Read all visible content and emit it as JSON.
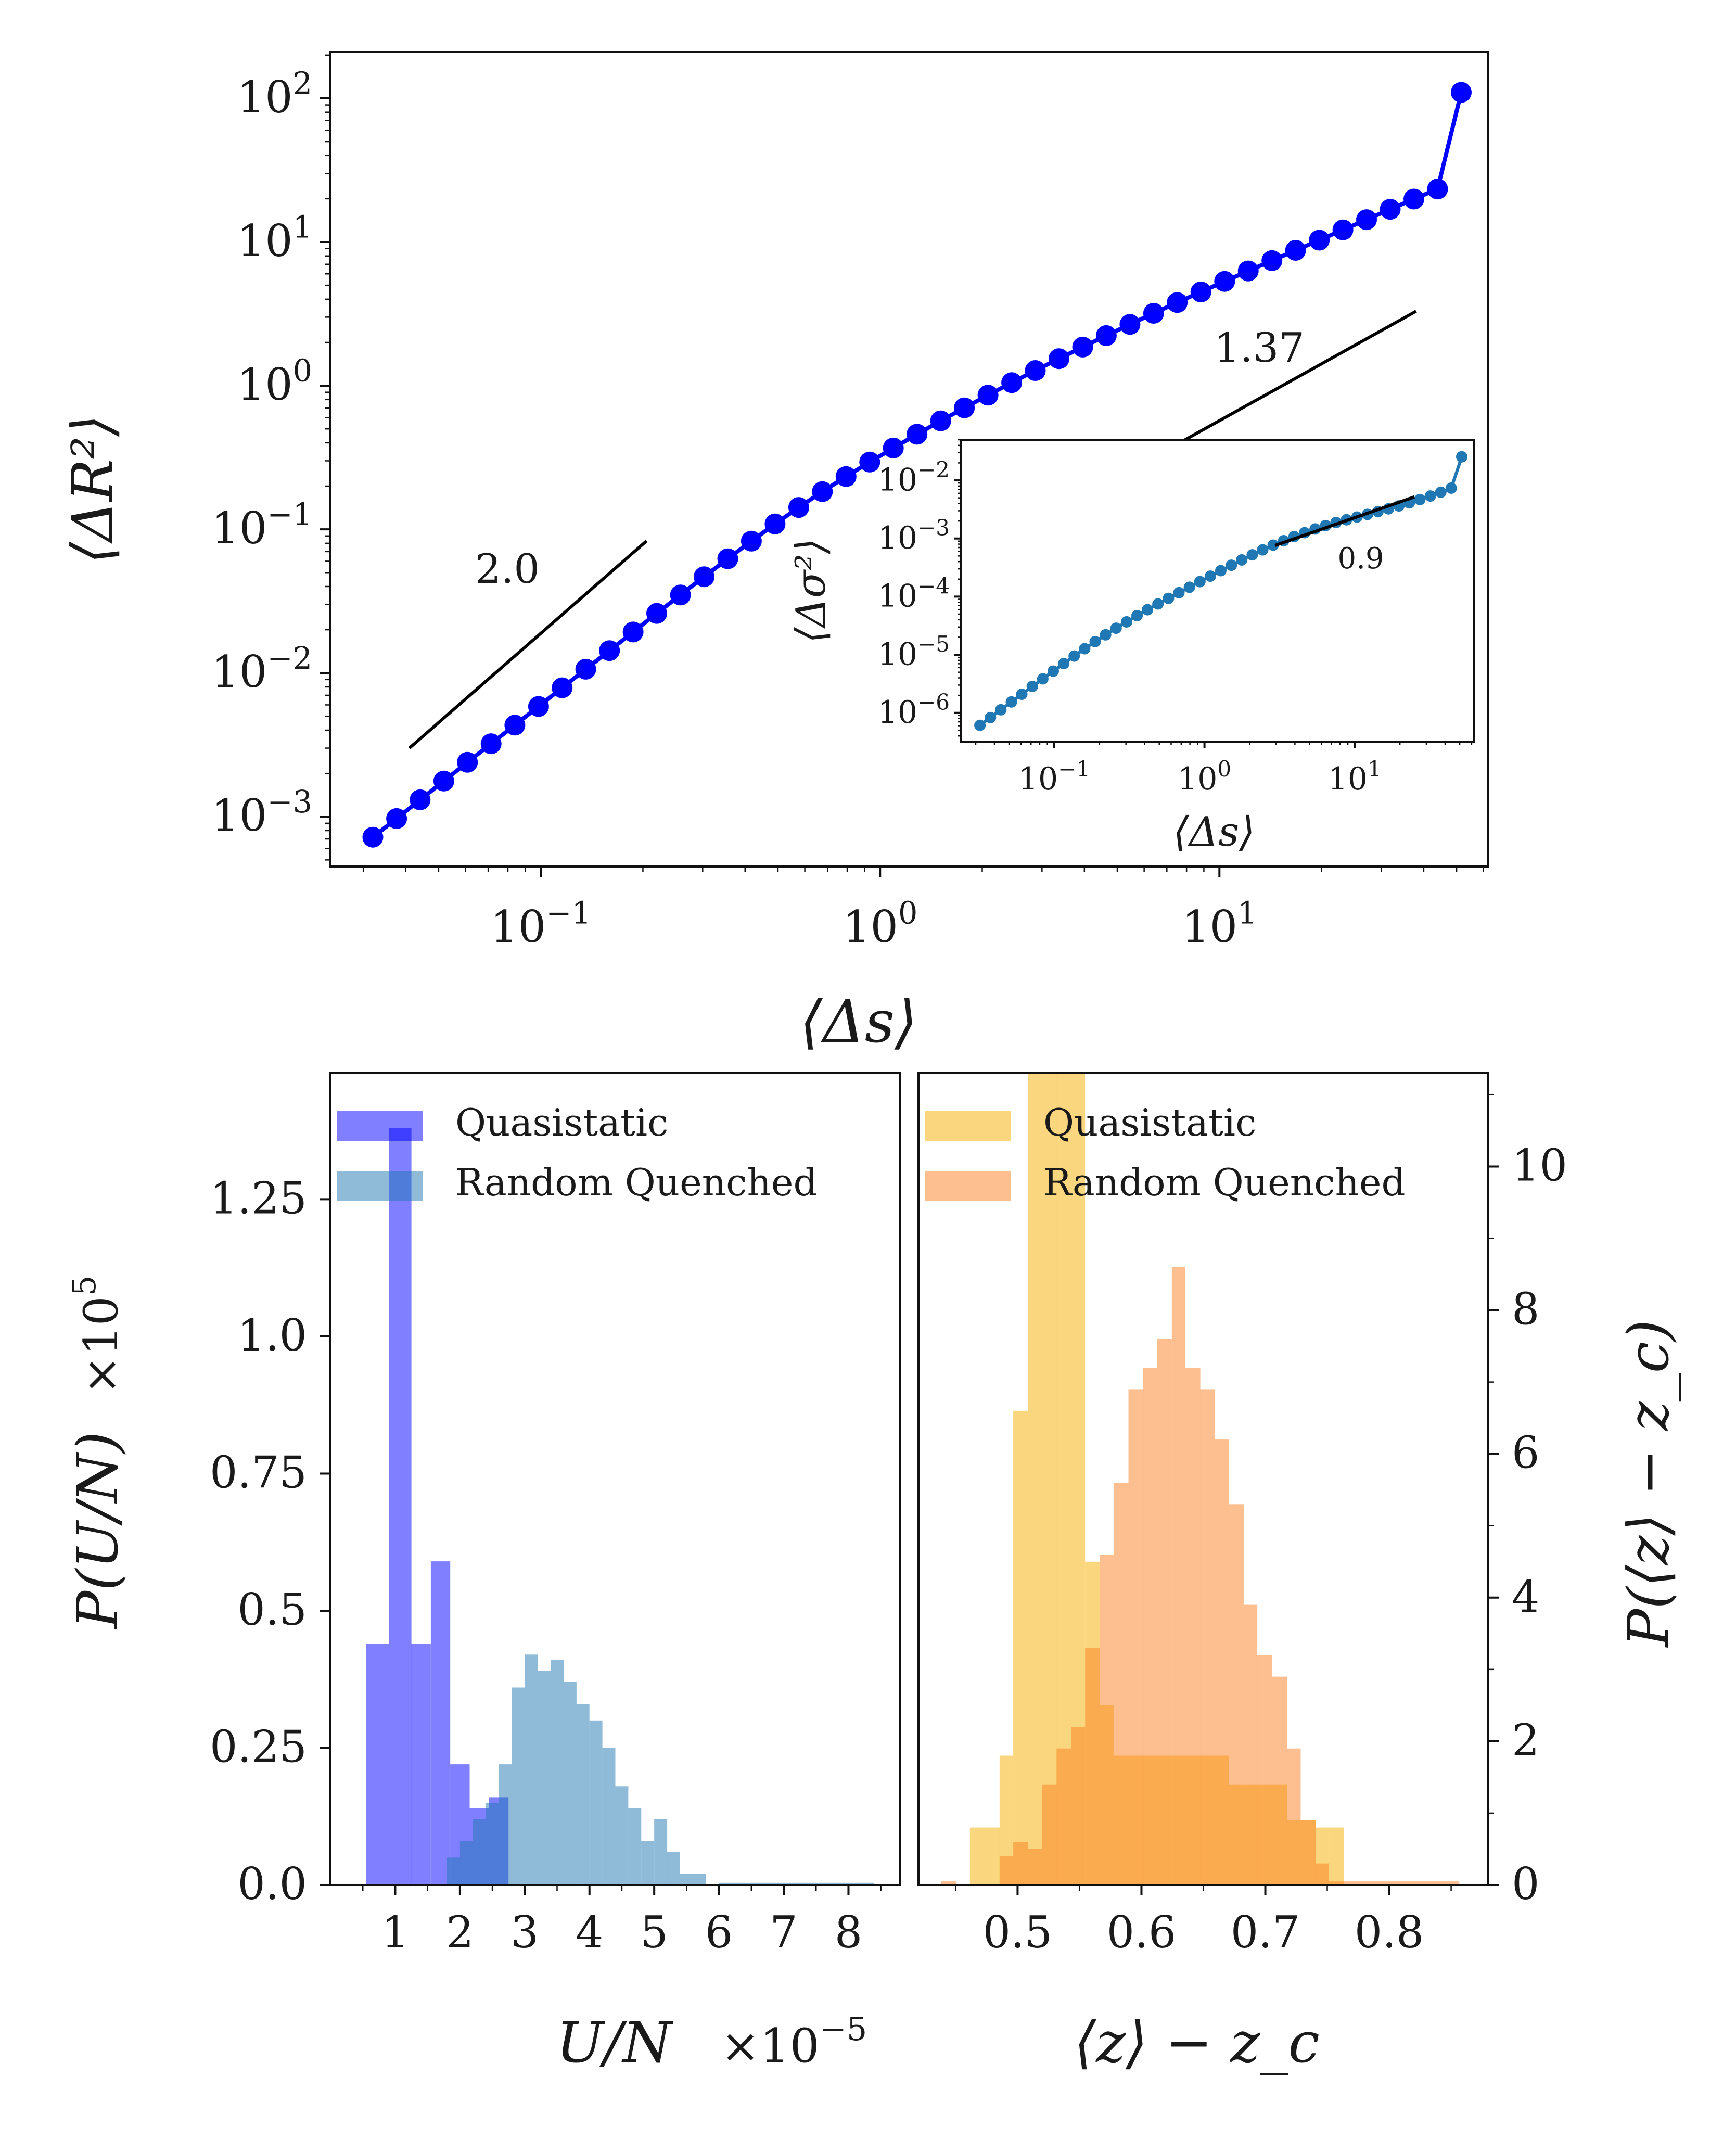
{
  "colors": {
    "main_series": "#0000ff",
    "inset_series": "#1f77b4",
    "hist_quasistatic_left": "#0000ff",
    "hist_random_left": "#1f77b4",
    "hist_quasistatic_right": "#f5b000",
    "hist_random_right": "#fb8020"
  },
  "chart_data": [
    {
      "id": "msd",
      "type": "line",
      "xscale": "log",
      "yscale": "log",
      "xlabel": "⟨Δs⟩",
      "ylabel": "⟨ΔR²⟩",
      "xlim": [
        0.024,
        62
      ],
      "ylim": [
        0.00045,
        210
      ],
      "x_ticks": [
        {
          "value": 0.1,
          "mantissa": "10",
          "exp": "−1"
        },
        {
          "value": 1,
          "mantissa": "10",
          "exp": "0"
        },
        {
          "value": 10,
          "mantissa": "10",
          "exp": "1"
        }
      ],
      "y_ticks": [
        {
          "value": 0.001,
          "mantissa": "10",
          "exp": "−3"
        },
        {
          "value": 0.01,
          "mantissa": "10",
          "exp": "−2"
        },
        {
          "value": 0.1,
          "mantissa": "10",
          "exp": "−1"
        },
        {
          "value": 1,
          "mantissa": "10",
          "exp": "0"
        },
        {
          "value": 10,
          "mantissa": "10",
          "exp": "1"
        },
        {
          "value": 100,
          "mantissa": "10",
          "exp": "2"
        }
      ],
      "series": [
        {
          "name": "MSD",
          "x": [
            0.032,
            0.0376,
            0.0441,
            0.0518,
            0.0608,
            0.0714,
            0.0839,
            0.0985,
            0.1156,
            0.1357,
            0.1594,
            0.1871,
            0.2197,
            0.258,
            0.3029,
            0.3557,
            0.4176,
            0.4903,
            0.5757,
            0.676,
            0.7937,
            0.932,
            1.094,
            1.285,
            1.509,
            1.771,
            2.08,
            2.442,
            2.867,
            3.367,
            3.953,
            4.641,
            5.45,
            6.4,
            7.51,
            8.82,
            10.36,
            12.16,
            14.28,
            16.77,
            19.69,
            23.12,
            27.14,
            31.87,
            37.42,
            43.94,
            51.6
          ],
          "y": [
            0.00072,
            0.00097,
            0.00131,
            0.00177,
            0.00239,
            0.00322,
            0.00434,
            0.00585,
            0.00789,
            0.01063,
            0.01432,
            0.0193,
            0.026,
            0.0349,
            0.0468,
            0.0624,
            0.0828,
            0.109,
            0.142,
            0.183,
            0.233,
            0.294,
            0.368,
            0.459,
            0.569,
            0.701,
            0.859,
            1.049,
            1.274,
            1.541,
            1.857,
            2.23,
            2.67,
            3.19,
            3.79,
            4.49,
            5.32,
            6.29,
            7.42,
            8.75,
            10.3,
            12.15,
            14.3,
            16.9,
            19.9,
            23.4,
            110
          ]
        }
      ],
      "annotations": [
        {
          "label": "2.0",
          "slope": 2.0,
          "x": [
            0.041,
            0.205
          ],
          "y": [
            0.003,
            0.083
          ]
        },
        {
          "label": "1.37",
          "slope": 1.37,
          "x": [
            3.15,
            38.0
          ],
          "y": [
            0.125,
            3.3
          ]
        }
      ]
    },
    {
      "id": "stress",
      "type": "line",
      "xscale": "log",
      "yscale": "log",
      "xlabel": "⟨Δs⟩",
      "ylabel": "⟨Δσ²⟩",
      "xlim": [
        0.024,
        62
      ],
      "ylim": [
        3.2e-07,
        0.05
      ],
      "x_ticks": [
        {
          "value": 0.1,
          "mantissa": "10",
          "exp": "−1"
        },
        {
          "value": 1,
          "mantissa": "10",
          "exp": "0"
        },
        {
          "value": 10,
          "mantissa": "10",
          "exp": "1"
        }
      ],
      "y_ticks": [
        {
          "value": 1e-06,
          "mantissa": "10",
          "exp": "−6"
        },
        {
          "value": 1e-05,
          "mantissa": "10",
          "exp": "−5"
        },
        {
          "value": 0.0001,
          "mantissa": "10",
          "exp": "−4"
        },
        {
          "value": 0.001,
          "mantissa": "10",
          "exp": "−3"
        },
        {
          "value": 0.01,
          "mantissa": "10",
          "exp": "−2"
        }
      ],
      "series": [
        {
          "name": "Δσ²",
          "x": [
            0.032,
            0.0376,
            0.0441,
            0.0518,
            0.0608,
            0.0714,
            0.0839,
            0.0985,
            0.1156,
            0.1357,
            0.1594,
            0.1871,
            0.2197,
            0.258,
            0.3029,
            0.3557,
            0.4176,
            0.4903,
            0.5757,
            0.676,
            0.7937,
            0.932,
            1.094,
            1.285,
            1.509,
            1.771,
            2.08,
            2.442,
            2.867,
            3.367,
            3.953,
            4.641,
            5.45,
            6.4,
            7.51,
            8.82,
            10.36,
            12.16,
            14.28,
            16.77,
            19.69,
            23.12,
            27.14,
            31.87,
            37.42,
            43.94,
            51.6
          ],
          "y": [
            6.1e-07,
            8.3e-07,
            1.13e-06,
            1.54e-06,
            2.09e-06,
            2.84e-06,
            3.85e-06,
            5.22e-06,
            7.06e-06,
            9.5e-06,
            1.27e-05,
            1.68e-05,
            2.2e-05,
            2.86e-05,
            3.68e-05,
            4.7e-05,
            5.95e-05,
            7.48e-05,
            9.35e-05,
            0.000117,
            0.000145,
            0.000181,
            0.000225,
            0.00028,
            0.000347,
            0.000428,
            0.000524,
            0.000637,
            0.000768,
            0.000916,
            0.00108,
            0.00126,
            0.00146,
            0.00167,
            0.00188,
            0.0021,
            0.00234,
            0.0026,
            0.0029,
            0.00324,
            0.00364,
            0.00411,
            0.00468,
            0.00538,
            0.00625,
            0.00735,
            0.0255
          ]
        }
      ],
      "annotations": [
        {
          "label": "0.9",
          "slope": 0.9,
          "x": [
            2.95,
            25.0
          ],
          "y": [
            0.00076,
            0.0052
          ]
        }
      ]
    },
    {
      "id": "hist_energy",
      "type": "bar",
      "xlabel": "U/N",
      "xlabel_multiplier": {
        "mantissa": "×10",
        "exp": "−5"
      },
      "ylabel": "P(U/N)",
      "ylabel_multiplier": {
        "mantissa": "×10",
        "exp": "5"
      },
      "xlim": [
        0.0,
        8.8
      ],
      "ylim": [
        0.0,
        1.48
      ],
      "x_ticks": [
        1,
        2,
        3,
        4,
        5,
        6,
        7,
        8
      ],
      "y_ticks": [
        {
          "value": 0.0,
          "label": "0.0"
        },
        {
          "value": 0.25,
          "label": "0.25"
        },
        {
          "value": 0.5,
          "label": "0.5"
        },
        {
          "value": 0.75,
          "label": "0.75"
        },
        {
          "value": 1.0,
          "label": "1.0"
        },
        {
          "value": 1.25,
          "label": "1.25"
        }
      ],
      "series": [
        {
          "name": "Quasistatic",
          "bin_edges": [
            0.55,
            0.9,
            1.25,
            1.55,
            1.85,
            2.15,
            2.45,
            2.75
          ],
          "values": [
            0.44,
            1.38,
            0.44,
            0.59,
            0.22,
            0.14,
            0.16
          ]
        },
        {
          "name": "Random Quenched",
          "bin_edges": [
            1.6,
            1.8,
            2.0,
            2.2,
            2.4,
            2.6,
            2.8,
            3.0,
            3.2,
            3.4,
            3.6,
            3.8,
            4.0,
            4.2,
            4.4,
            4.6,
            4.8,
            5.0,
            5.2,
            5.4,
            5.6,
            5.8,
            6.0,
            6.2,
            6.4,
            6.6,
            6.8,
            7.0,
            7.2,
            7.4,
            7.6,
            7.8,
            8.0,
            8.2,
            8.4
          ],
          "values": [
            0.0,
            0.05,
            0.08,
            0.12,
            0.15,
            0.22,
            0.36,
            0.42,
            0.39,
            0.41,
            0.37,
            0.33,
            0.3,
            0.25,
            0.18,
            0.14,
            0.08,
            0.12,
            0.06,
            0.02,
            0.02,
            0.0,
            0.004,
            0.004,
            0.004,
            0.004,
            0.004,
            0.004,
            0.004,
            0.004,
            0.004,
            0.004,
            0.004,
            0.004
          ]
        }
      ],
      "legend": [
        "Quasistatic",
        "Random Quenched"
      ],
      "legend_position": "top-right"
    },
    {
      "id": "hist_contacts",
      "type": "bar",
      "xlabel": "⟨z⟩ − z_c",
      "ylabel": "P(⟨z⟩ − z_c)",
      "xlim": [
        0.42,
        0.88
      ],
      "ylim": [
        0.0,
        11.3
      ],
      "x_ticks": [
        {
          "value": 0.5,
          "label": "0.5"
        },
        {
          "value": 0.6,
          "label": "0.6"
        },
        {
          "value": 0.7,
          "label": "0.7"
        },
        {
          "value": 0.8,
          "label": "0.8"
        }
      ],
      "y_ticks": [
        0,
        2,
        4,
        6,
        8,
        10
      ],
      "series": [
        {
          "name": "Quasistatic",
          "bin_edges": [
            0.4385,
            0.4505,
            0.4615,
            0.4735,
            0.4855,
            0.4965,
            0.5085,
            0.5195,
            0.5315,
            0.5435,
            0.5545,
            0.5665,
            0.5775,
            0.5895,
            0.6015,
            0.6125,
            0.6245,
            0.6355,
            0.6475,
            0.6595,
            0.6705,
            0.6825,
            0.6935,
            0.7055,
            0.7175,
            0.7285,
            0.7405,
            0.7515,
            0.7635,
            0.7755,
            0.7865,
            0.7985,
            0.8095,
            0.8215,
            0.8335,
            0.8445,
            0.8565
          ],
          "values": [
            0.0,
            0.0,
            0.8,
            0.8,
            1.8,
            6.6,
            13.5,
            13.5,
            12.8,
            12.0,
            4.5,
            2.5,
            1.8,
            1.8,
            1.8,
            1.8,
            1.8,
            1.8,
            1.8,
            1.8,
            1.4,
            1.4,
            1.4,
            1.4,
            0.9,
            0.9,
            0.8,
            0.8,
            0.0,
            0.0,
            0.0,
            0.0,
            0.0,
            0.0,
            0.0,
            0.0
          ]
        },
        {
          "name": "Random Quenched",
          "bin_edges": [
            0.4385,
            0.4505,
            0.4615,
            0.4735,
            0.4855,
            0.4965,
            0.5085,
            0.5195,
            0.5315,
            0.5435,
            0.5545,
            0.5665,
            0.5775,
            0.5895,
            0.6015,
            0.6125,
            0.6245,
            0.6355,
            0.6475,
            0.6595,
            0.6705,
            0.6825,
            0.6935,
            0.7055,
            0.7175,
            0.7285,
            0.7405,
            0.7515,
            0.7635,
            0.7755,
            0.7865,
            0.7985,
            0.8095,
            0.8215,
            0.8335,
            0.8445,
            0.8565
          ],
          "values": [
            0.05,
            0.0,
            0.0,
            0.0,
            0.4,
            0.6,
            0.5,
            1.4,
            1.9,
            2.2,
            3.3,
            4.6,
            5.6,
            6.9,
            7.2,
            7.6,
            8.6,
            7.2,
            6.9,
            6.2,
            5.3,
            3.9,
            3.2,
            2.9,
            1.9,
            0.9,
            0.3,
            0.05,
            0.05,
            0.05,
            0.05,
            0.05,
            0.05,
            0.05,
            0.05,
            0.05
          ]
        }
      ],
      "legend": [
        "Quasistatic",
        "Random Quenched"
      ],
      "legend_position": "top-left"
    }
  ]
}
